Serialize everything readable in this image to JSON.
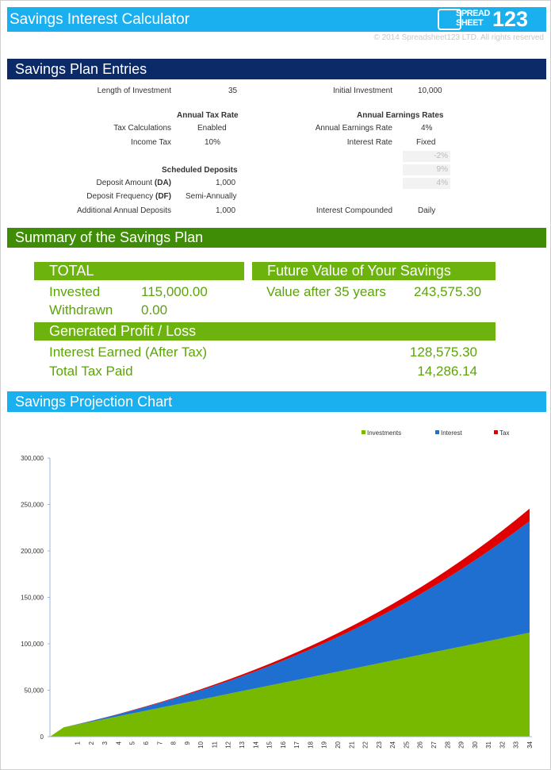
{
  "header": {
    "title": "Savings Interest Calculator",
    "logo": [
      "SPREAD",
      "SHEET",
      "123"
    ],
    "copyright": "© 2014 Spreadsheet123 LTD. All rights reserved"
  },
  "entries": {
    "title": "Savings Plan Entries",
    "length_label": "Length of Investment",
    "length_value": "35",
    "initial_label": "Initial Investment",
    "initial_value": "10,000",
    "tax_heading": "Annual Tax Rate",
    "earn_heading": "Annual Earnings Rates",
    "taxcalc_label": "Tax Calculations",
    "taxcalc_value": "Enabled",
    "earnrate_label": "Annual Earnings Rate",
    "earnrate_value": "4%",
    "income_label": "Income Tax",
    "income_value": "10%",
    "interest_label": "Interest Rate",
    "interest_value": "Fixed",
    "faded_values": [
      "-2%",
      "9%",
      "4%"
    ],
    "deposits_heading": "Scheduled Deposits",
    "da_label": "Deposit Amount",
    "da_abbr": "(DA)",
    "da_value": "1,000",
    "df_label": "Deposit Frequency",
    "df_abbr": "(DF)",
    "df_value": "Semi-Annually",
    "add_label": "Additional Annual Deposits",
    "add_value": "1,000",
    "compound_label": "Interest Compounded",
    "compound_value": "Daily"
  },
  "summary": {
    "title": "Summary of the Savings Plan",
    "total_heading": "TOTAL",
    "invested_label": "Invested",
    "invested_value": "115,000.00",
    "withdrawn_label": "Withdrawn",
    "withdrawn_value": "0.00",
    "future_heading": "Future Value of Your Savings",
    "value_label": "Value after 35 years",
    "value_value": "243,575.30",
    "profit_heading": "Generated Profit / Loss",
    "interest_label": "Interest Earned (After Tax)",
    "interest_value": "128,575.30",
    "tax_label": "Total Tax Paid",
    "tax_value": "14,286.14"
  },
  "chart_title": "Savings Projection Chart",
  "chart_data": {
    "type": "area",
    "stacked": true,
    "legend": "top-right",
    "categories": [
      null,
      null,
      "1",
      "2",
      "3",
      "4",
      "5",
      "6",
      "7",
      "8",
      "9",
      "10",
      "11",
      "12",
      "13",
      "14",
      "15",
      "16",
      "17",
      "18",
      "19",
      "20",
      "21",
      "22",
      "23",
      "24",
      "25",
      "26",
      "27",
      "28",
      "29",
      "30",
      "31",
      "32",
      "33",
      "34"
    ],
    "series": [
      {
        "name": "Investments",
        "color": "#76b900",
        "values": [
          0,
          10000,
          13000,
          16000,
          19000,
          22000,
          25000,
          28000,
          31000,
          34000,
          37000,
          40000,
          43000,
          46000,
          49000,
          52000,
          55000,
          58000,
          61000,
          64000,
          67000,
          70000,
          73000,
          76000,
          79000,
          82000,
          85000,
          88000,
          91000,
          94000,
          97000,
          100000,
          103000,
          106000,
          109000,
          112000
        ]
      },
      {
        "name": "Interest",
        "color": "#1f6fd1",
        "values": [
          0,
          0,
          370,
          865,
          1489,
          2247,
          3144,
          4186,
          5376,
          6722,
          8229,
          9903,
          11749,
          13775,
          15987,
          18391,
          20995,
          23807,
          26834,
          30084,
          33565,
          37286,
          41256,
          45483,
          49978,
          54750,
          59810,
          65168,
          70836,
          76824,
          83144,
          89810,
          96832,
          104226,
          112005,
          120182
        ]
      },
      {
        "name": "Tax",
        "color": "#e00000",
        "values": [
          0,
          0,
          41,
          96,
          165,
          250,
          349,
          465,
          597,
          747,
          914,
          1100,
          1305,
          1531,
          1776,
          2043,
          2333,
          2645,
          2982,
          3343,
          3729,
          4143,
          4584,
          5054,
          5553,
          6083,
          6646,
          7241,
          7871,
          8536,
          9238,
          9979,
          10759,
          11581,
          12445,
          13354
        ]
      }
    ],
    "ylim": [
      0,
      300000
    ],
    "yticks": [
      0,
      {
        "value": 50000,
        "label": "50,000"
      },
      {
        "value": 100000,
        "label": "100,000"
      },
      {
        "value": 150000,
        "label": "150,000"
      },
      {
        "value": 200000,
        "label": "200,000"
      },
      {
        "value": 250000,
        "label": "250,000"
      },
      {
        "value": 300000,
        "label": "300,000"
      }
    ]
  }
}
